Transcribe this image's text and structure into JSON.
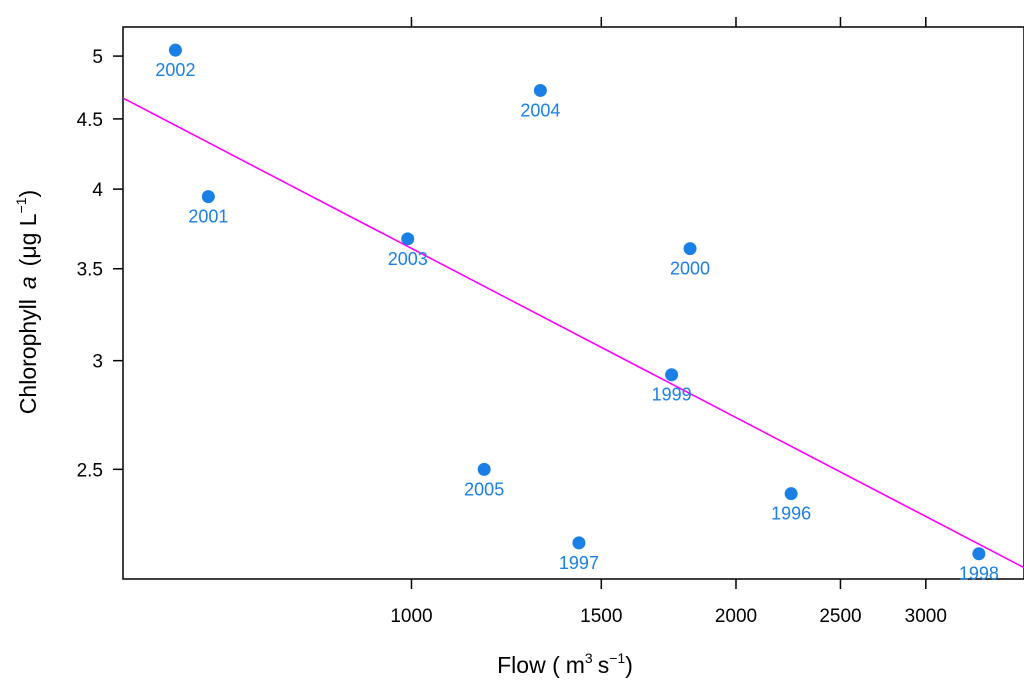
{
  "chart_data": {
    "type": "scatter",
    "title": "",
    "xlabel": {
      "prefix": "Flow (",
      "unit_main": "m",
      "unit_main_sup": "3",
      "unit_second": "s",
      "unit_second_sup": "−1",
      "suffix": ")"
    },
    "ylabel": {
      "prefix": "Chlorophyll",
      "italic": "a",
      "unit": "(μg L",
      "unit_sup": "−1",
      "suffix": ")"
    },
    "x_scale": "log",
    "y_scale": "log",
    "xlim": [
      540,
      3700
    ],
    "ylim": [
      2.08,
      5.25
    ],
    "x_ticks": [
      {
        "value": 1000,
        "label": "1000"
      },
      {
        "value": 1500,
        "label": "1500"
      },
      {
        "value": 2000,
        "label": "2000"
      },
      {
        "value": 2500,
        "label": "2500"
      },
      {
        "value": 3000,
        "label": "3000"
      }
    ],
    "y_ticks": [
      {
        "value": 2.5,
        "label": "2.5"
      },
      {
        "value": 3,
        "label": "3"
      },
      {
        "value": 3.5,
        "label": "3.5"
      },
      {
        "value": 4,
        "label": "4"
      },
      {
        "value": 4.5,
        "label": "4.5"
      },
      {
        "value": 5,
        "label": "5"
      }
    ],
    "points": [
      {
        "label": "2002",
        "x": 604,
        "y": 5.05
      },
      {
        "label": "2001",
        "x": 648,
        "y": 3.95
      },
      {
        "label": "2003",
        "x": 992,
        "y": 3.68
      },
      {
        "label": "2004",
        "x": 1317,
        "y": 4.72
      },
      {
        "label": "2000",
        "x": 1813,
        "y": 3.62
      },
      {
        "label": "1999",
        "x": 1743,
        "y": 2.93
      },
      {
        "label": "2005",
        "x": 1168,
        "y": 2.5
      },
      {
        "label": "1997",
        "x": 1430,
        "y": 2.21
      },
      {
        "label": "1996",
        "x": 2250,
        "y": 2.4
      },
      {
        "label": "1998",
        "x": 3360,
        "y": 2.17
      }
    ],
    "fit_line": {
      "x1": 540,
      "y1": 4.66,
      "x2": 3700,
      "y2": 2.12
    },
    "colors": {
      "points": "#1a80e6",
      "labels": "#1a80e6",
      "fit_line": "#ff00ff",
      "axis": "#000000"
    },
    "grid": false,
    "legend": "none"
  }
}
